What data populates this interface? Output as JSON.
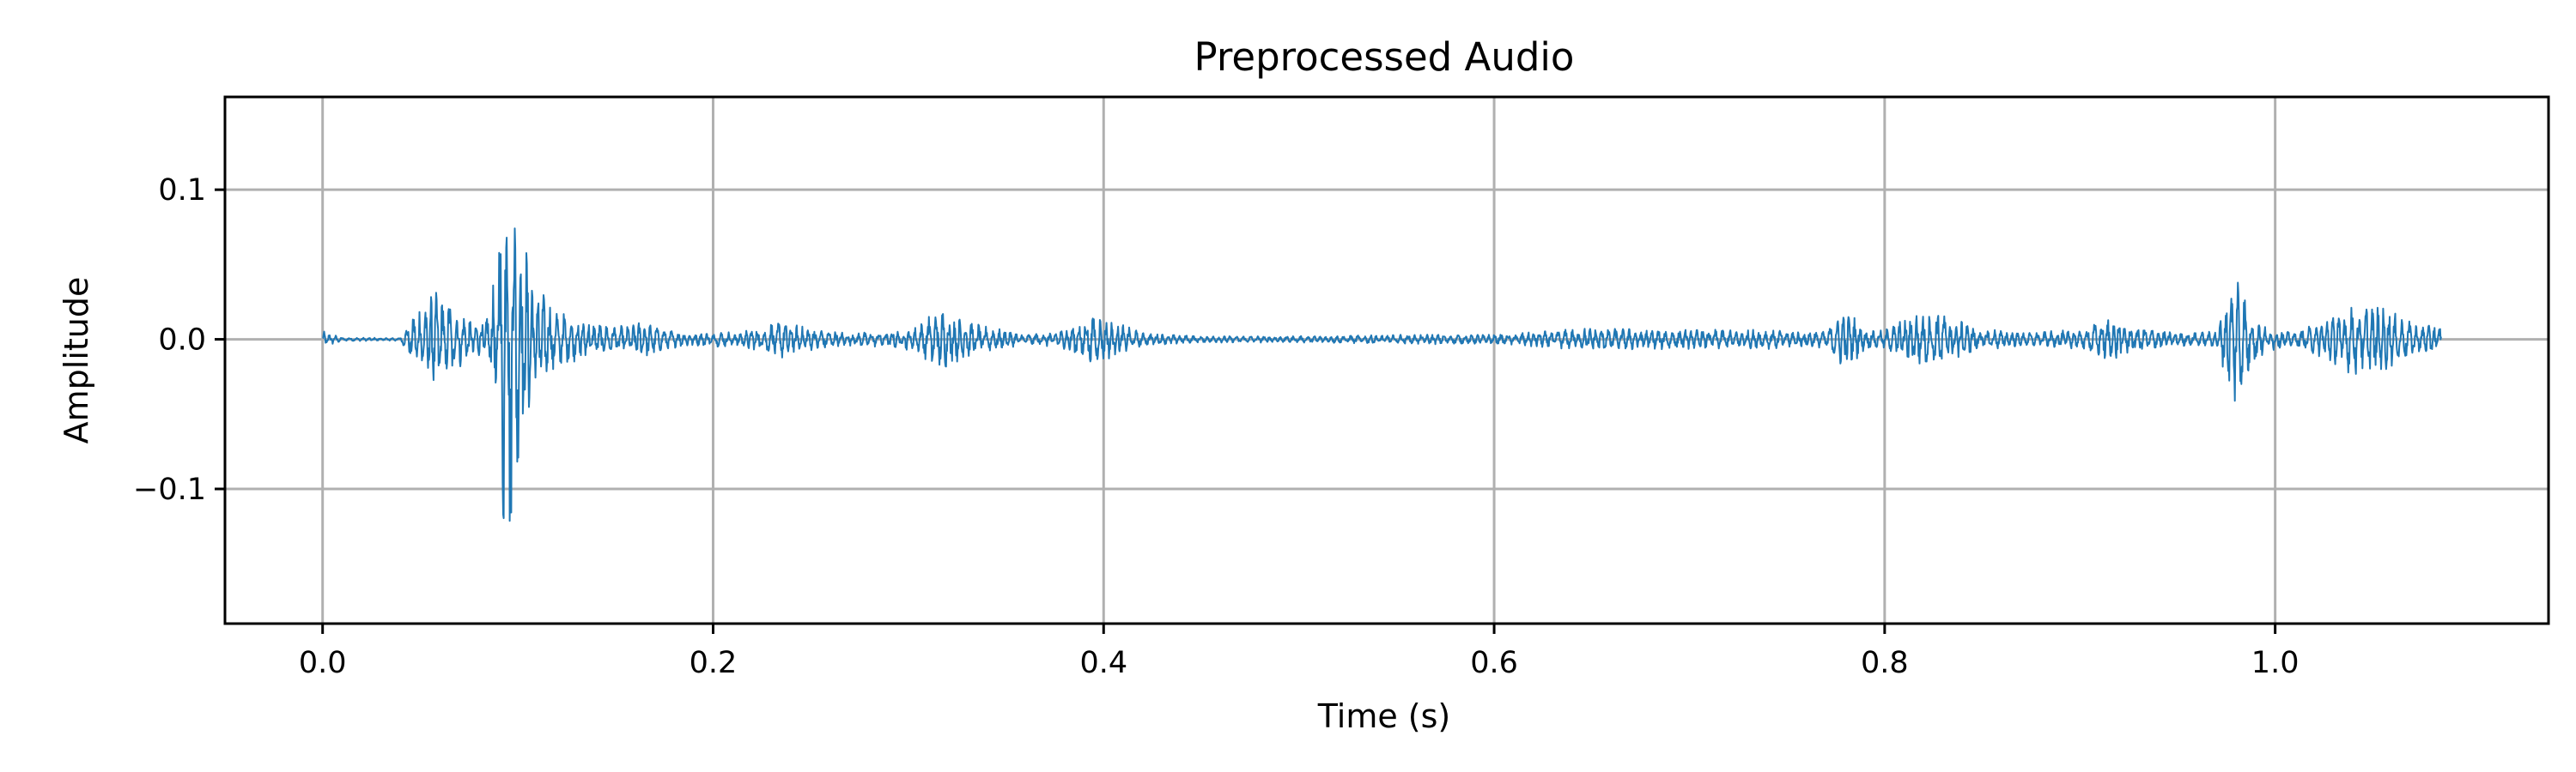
{
  "chart_data": {
    "type": "line",
    "title": "Preprocessed Audio",
    "xlabel": "Time (s)",
    "ylabel": "Amplitude",
    "xlim": [
      -0.05,
      1.14
    ],
    "ylim": [
      -0.19,
      0.162
    ],
    "x_ticks": [
      {
        "value": 0.0,
        "label": "0.0"
      },
      {
        "value": 0.2,
        "label": "0.2"
      },
      {
        "value": 0.4,
        "label": "0.4"
      },
      {
        "value": 0.6,
        "label": "0.6"
      },
      {
        "value": 0.8,
        "label": "0.8"
      },
      {
        "value": 1.0,
        "label": "1.0"
      }
    ],
    "y_ticks": [
      {
        "value": 0.1,
        "label": "0.1"
      },
      {
        "value": 0.0,
        "label": "0.0"
      },
      {
        "value": -0.1,
        "label": "−0.1"
      }
    ],
    "grid": true,
    "line_color": "#1f77b4",
    "duration": 1.085,
    "series": [
      {
        "envelope": [
          [
            0.0,
            0.005
          ],
          [
            0.003,
            0.004
          ],
          [
            0.01,
            0.001
          ],
          [
            0.04,
            0.001
          ],
          [
            0.045,
            0.012
          ],
          [
            0.05,
            0.022
          ],
          [
            0.058,
            0.03
          ],
          [
            0.065,
            0.025
          ],
          [
            0.072,
            0.015
          ],
          [
            0.08,
            0.01
          ],
          [
            0.086,
            0.02
          ],
          [
            0.09,
            0.06
          ],
          [
            0.094,
            0.16
          ],
          [
            0.098,
            0.11
          ],
          [
            0.102,
            0.07
          ],
          [
            0.108,
            0.04
          ],
          [
            0.115,
            0.025
          ],
          [
            0.125,
            0.015
          ],
          [
            0.14,
            0.01
          ],
          [
            0.155,
            0.008
          ],
          [
            0.165,
            0.012
          ],
          [
            0.175,
            0.006
          ],
          [
            0.19,
            0.004
          ],
          [
            0.215,
            0.005
          ],
          [
            0.235,
            0.012
          ],
          [
            0.245,
            0.008
          ],
          [
            0.27,
            0.004
          ],
          [
            0.29,
            0.005
          ],
          [
            0.305,
            0.008
          ],
          [
            0.315,
            0.02
          ],
          [
            0.325,
            0.014
          ],
          [
            0.34,
            0.008
          ],
          [
            0.36,
            0.003
          ],
          [
            0.38,
            0.006
          ],
          [
            0.393,
            0.016
          ],
          [
            0.403,
            0.012
          ],
          [
            0.42,
            0.004
          ],
          [
            0.45,
            0.002
          ],
          [
            0.5,
            0.002
          ],
          [
            0.55,
            0.003
          ],
          [
            0.6,
            0.003
          ],
          [
            0.65,
            0.007
          ],
          [
            0.7,
            0.006
          ],
          [
            0.74,
            0.006
          ],
          [
            0.77,
            0.005
          ],
          [
            0.78,
            0.02
          ],
          [
            0.79,
            0.006
          ],
          [
            0.8,
            0.006
          ],
          [
            0.815,
            0.016
          ],
          [
            0.83,
            0.018
          ],
          [
            0.845,
            0.008
          ],
          [
            0.87,
            0.004
          ],
          [
            0.9,
            0.006
          ],
          [
            0.915,
            0.014
          ],
          [
            0.93,
            0.008
          ],
          [
            0.95,
            0.004
          ],
          [
            0.97,
            0.005
          ],
          [
            0.98,
            0.045
          ],
          [
            0.985,
            0.025
          ],
          [
            0.995,
            0.008
          ],
          [
            1.01,
            0.004
          ],
          [
            1.025,
            0.012
          ],
          [
            1.04,
            0.022
          ],
          [
            1.055,
            0.02
          ],
          [
            1.07,
            0.01
          ],
          [
            1.085,
            0.008
          ]
        ]
      }
    ]
  }
}
